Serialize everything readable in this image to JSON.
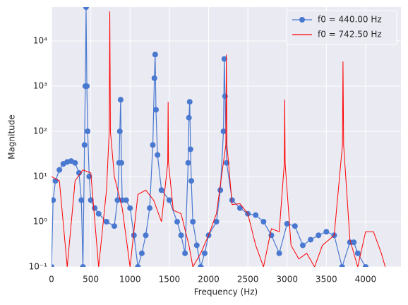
{
  "chart_data": {
    "type": "line",
    "xlabel": "Frequency (Hz)",
    "ylabel": "Magnitude",
    "xlim": [
      0,
      4450
    ],
    "ylim": [
      0.1,
      56234
    ],
    "log_y": true,
    "grid": true,
    "legend": "upper right",
    "xticks": [
      0,
      500,
      1000,
      1500,
      2000,
      2500,
      3000,
      3500,
      4000
    ],
    "yticks": [
      {
        "value": 0.1,
        "label": "10⁻¹"
      },
      {
        "value": 1,
        "label": "10⁰"
      },
      {
        "value": 10,
        "label": "10¹"
      },
      {
        "value": 100,
        "label": "10²"
      },
      {
        "value": 1000,
        "label": "10³"
      },
      {
        "value": 10000,
        "label": "10⁴"
      }
    ],
    "series": [
      {
        "name": "f0 = 440.00 Hz",
        "color": "#4878d0",
        "marker": true,
        "x": [
          0,
          20,
          50,
          100,
          150,
          200,
          250,
          300,
          350,
          380,
          400,
          420,
          430,
          440,
          450,
          460,
          480,
          500,
          550,
          600,
          700,
          800,
          840,
          860,
          870,
          880,
          890,
          900,
          950,
          1000,
          1050,
          1100,
          1150,
          1200,
          1250,
          1290,
          1310,
          1320,
          1330,
          1350,
          1400,
          1500,
          1600,
          1650,
          1700,
          1740,
          1750,
          1760,
          1770,
          1780,
          1800,
          1850,
          1900,
          1950,
          2000,
          2100,
          2150,
          2190,
          2200,
          2210,
          2230,
          2300,
          2400,
          2500,
          2600,
          2700,
          2800,
          2900,
          3000,
          3100,
          3200,
          3300,
          3400,
          3500,
          3600,
          3700,
          3800,
          3850,
          3900,
          4000
        ],
        "values": [
          0.1,
          3,
          8,
          14,
          19,
          21,
          22,
          20,
          12,
          3,
          0.1,
          50,
          1000,
          56000,
          1000,
          100,
          10,
          3,
          2,
          1.5,
          1,
          0.8,
          3,
          20,
          100,
          500,
          20,
          3,
          3,
          2,
          0.5,
          0.1,
          0.2,
          0.5,
          2,
          50,
          1500,
          5000,
          300,
          30,
          5,
          3,
          1,
          0.5,
          0.2,
          20,
          200,
          450,
          40,
          8,
          1,
          0.3,
          0.1,
          0.2,
          0.5,
          1,
          5,
          100,
          4000,
          600,
          20,
          3,
          2,
          1.5,
          1.4,
          1,
          0.5,
          0.2,
          0.9,
          0.8,
          0.3,
          0.4,
          0.5,
          0.6,
          0.5,
          0.1,
          0.35,
          0.35,
          0.2,
          0.1
        ]
      },
      {
        "name": "f0 = 742.50 Hz",
        "color": "#ff0000",
        "marker": false,
        "x": [
          0,
          100,
          200,
          300,
          400,
          500,
          600,
          700,
          735,
          742,
          750,
          800,
          900,
          1000,
          1100,
          1200,
          1300,
          1400,
          1480,
          1485,
          1490,
          1550,
          1650,
          1750,
          1800,
          1900,
          2000,
          2100,
          2220,
          2227,
          2234,
          2300,
          2400,
          2500,
          2600,
          2700,
          2800,
          2900,
          2965,
          2970,
          2975,
          3050,
          3150,
          3250,
          3350,
          3450,
          3600,
          3705,
          3712,
          3720,
          3800,
          3900,
          4000,
          4100,
          4200,
          4250
        ],
        "values": [
          10,
          8,
          0.1,
          8,
          14,
          12,
          0.1,
          5,
          100,
          45000,
          100,
          10,
          2,
          0.1,
          4,
          5,
          3,
          1,
          20,
          450,
          20,
          1.8,
          1.5,
          0.3,
          0.1,
          0.2,
          0.5,
          1.5,
          50,
          5000,
          50,
          2.4,
          2.5,
          1.5,
          0.3,
          0.1,
          0.7,
          0.6,
          20,
          500,
          20,
          0.3,
          0.15,
          0.2,
          0.1,
          0.3,
          0.5,
          50,
          3500,
          50,
          0.4,
          0.1,
          0.6,
          0.6,
          0.2,
          0.1
        ]
      }
    ]
  }
}
